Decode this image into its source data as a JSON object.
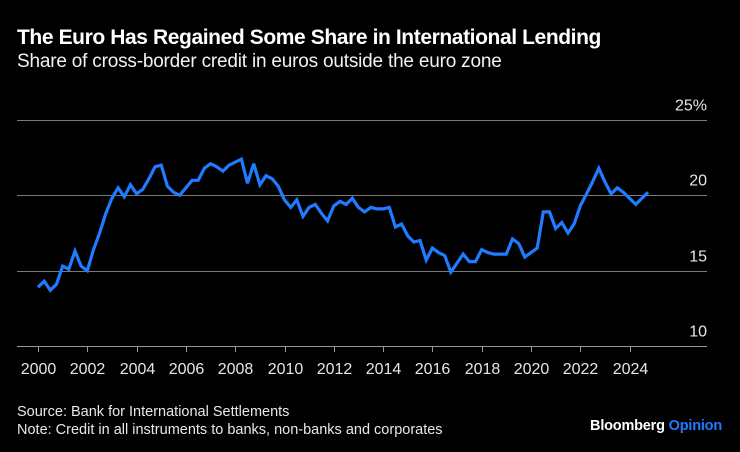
{
  "header": {
    "title": "The Euro Has Regained Some Share in International Lending",
    "subtitle": "Share of cross-border credit in euros outside the euro zone"
  },
  "footer": {
    "source": "Source: Bank for International Settlements",
    "note": "Note: Credit in all instruments to banks, non-banks and corporates",
    "brand_primary": "Bloomberg",
    "brand_secondary": "Opinion"
  },
  "colors": {
    "line": "#1f7bff",
    "grid": "#7a7a7a",
    "background": "#000000"
  },
  "chart_data": {
    "type": "line",
    "title": "The Euro Has Regained Some Share in International Lending",
    "subtitle": "Share of cross-border credit in euros outside the euro zone",
    "xlabel": "",
    "ylabel": "",
    "frequency": "quarterly",
    "x_start": 2000.0,
    "x_step": 0.25,
    "xlim": [
      1999.1,
      2026.8
    ],
    "ylim": [
      10,
      25
    ],
    "yticks": [
      10,
      15,
      20,
      25
    ],
    "ytick_labels": [
      "10",
      "15",
      "20",
      "25%"
    ],
    "xticks": [
      2000,
      2002,
      2004,
      2006,
      2008,
      2010,
      2012,
      2014,
      2016,
      2018,
      2020,
      2022,
      2024
    ],
    "xtick_labels": [
      "2000",
      "2002",
      "2004",
      "2006",
      "2008",
      "2010",
      "2012",
      "2014",
      "2016",
      "2018",
      "2020",
      "2022",
      "2024"
    ],
    "grid": true,
    "legend": "none",
    "series": [
      {
        "name": "Euro share of cross-border credit (%)",
        "values": [
          13.9,
          14.3,
          13.7,
          14.1,
          15.3,
          15.1,
          16.3,
          15.3,
          15.0,
          16.4,
          17.5,
          18.8,
          19.8,
          20.5,
          19.9,
          20.7,
          20.1,
          20.4,
          21.1,
          21.9,
          22.0,
          20.6,
          20.2,
          20.0,
          20.5,
          21.0,
          21.0,
          21.8,
          22.1,
          21.9,
          21.6,
          22.0,
          22.2,
          22.4,
          20.8,
          22.1,
          20.7,
          21.3,
          21.1,
          20.6,
          19.7,
          19.2,
          19.7,
          18.6,
          19.2,
          19.4,
          18.8,
          18.3,
          19.3,
          19.6,
          19.4,
          19.8,
          19.2,
          18.9,
          19.2,
          19.1,
          19.1,
          19.2,
          17.9,
          18.1,
          17.3,
          16.9,
          17.0,
          15.7,
          16.5,
          16.2,
          16.0,
          14.9,
          15.5,
          16.1,
          15.6,
          15.6,
          16.4,
          16.2,
          16.1,
          16.1,
          16.1,
          17.1,
          16.8,
          15.9,
          16.2,
          16.5,
          18.9,
          18.9,
          17.8,
          18.2,
          17.5,
          18.1,
          19.3,
          20.1,
          20.9,
          21.8,
          20.9,
          20.1,
          20.5,
          20.2,
          19.8,
          19.4,
          19.8,
          20.2
        ]
      }
    ]
  }
}
